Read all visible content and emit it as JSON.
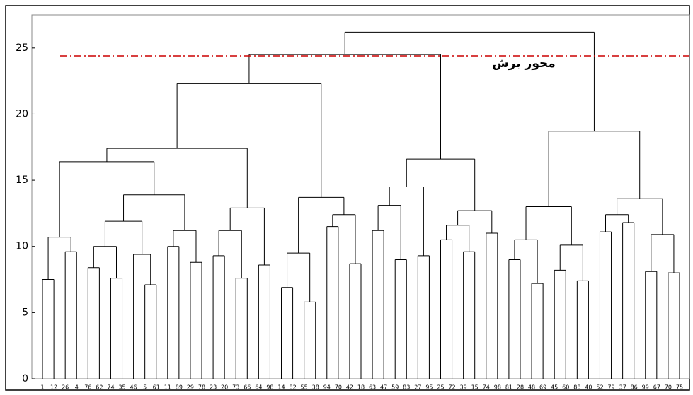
{
  "chart_data": {
    "type": "dendrogram",
    "ylim": [
      0,
      27.5
    ],
    "yticks": [
      0,
      5,
      10,
      15,
      20,
      25
    ],
    "line_color": "#000000",
    "cut_line": {
      "value": 24.4,
      "label": "محور برش",
      "color": "#cc0000"
    },
    "tree": {
      "height": 26.2,
      "children": [
        {
          "height": 24.5,
          "children": [
            {
              "height": 22.3,
              "children": [
                {
                  "height": 17.4,
                  "children": [
                    {
                      "height": 16.4,
                      "children": [
                        {
                          "height": 10.7,
                          "children": [
                            {
                              "height": 7.5,
                              "children": [
                                {
                                  "label": "1"
                                },
                                {
                                  "label": "12"
                                }
                              ]
                            },
                            {
                              "height": 9.6,
                              "children": [
                                {
                                  "label": "26"
                                },
                                {
                                  "label": "4"
                                }
                              ]
                            }
                          ]
                        },
                        {
                          "height": 13.9,
                          "children": [
                            {
                              "height": 11.9,
                              "children": [
                                {
                                  "height": 10.0,
                                  "children": [
                                    {
                                      "height": 8.4,
                                      "children": [
                                        {
                                          "label": "76"
                                        },
                                        {
                                          "label": "62"
                                        }
                                      ]
                                    },
                                    {
                                      "height": 7.6,
                                      "children": [
                                        {
                                          "label": "74"
                                        },
                                        {
                                          "label": "35"
                                        }
                                      ]
                                    }
                                  ]
                                },
                                {
                                  "height": 9.4,
                                  "children": [
                                    {
                                      "label": "46"
                                    },
                                    {
                                      "height": 7.1,
                                      "children": [
                                        {
                                          "label": "5"
                                        },
                                        {
                                          "label": "61"
                                        }
                                      ]
                                    }
                                  ]
                                }
                              ]
                            },
                            {
                              "height": 11.2,
                              "children": [
                                {
                                  "height": 10.0,
                                  "children": [
                                    {
                                      "label": "11"
                                    },
                                    {
                                      "label": "89"
                                    }
                                  ]
                                },
                                {
                                  "height": 8.8,
                                  "children": [
                                    {
                                      "label": "29"
                                    },
                                    {
                                      "label": "78"
                                    }
                                  ]
                                }
                              ]
                            }
                          ]
                        }
                      ]
                    },
                    {
                      "height": 12.9,
                      "children": [
                        {
                          "height": 11.2,
                          "children": [
                            {
                              "height": 9.3,
                              "children": [
                                {
                                  "label": "23"
                                },
                                {
                                  "label": "20"
                                }
                              ]
                            },
                            {
                              "height": 7.6,
                              "children": [
                                {
                                  "label": "73"
                                },
                                {
                                  "label": "66"
                                }
                              ]
                            }
                          ]
                        },
                        {
                          "height": 8.6,
                          "children": [
                            {
                              "label": "64"
                            },
                            {
                              "label": "98"
                            }
                          ]
                        }
                      ]
                    }
                  ]
                },
                {
                  "height": 13.7,
                  "children": [
                    {
                      "height": 9.5,
                      "children": [
                        {
                          "height": 6.9,
                          "children": [
                            {
                              "label": "14"
                            },
                            {
                              "label": "82"
                            }
                          ]
                        },
                        {
                          "height": 5.8,
                          "children": [
                            {
                              "label": "55"
                            },
                            {
                              "label": "38"
                            }
                          ]
                        }
                      ]
                    },
                    {
                      "height": 12.4,
                      "children": [
                        {
                          "height": 11.5,
                          "children": [
                            {
                              "label": "94"
                            },
                            {
                              "label": "70"
                            }
                          ]
                        },
                        {
                          "height": 8.7,
                          "children": [
                            {
                              "label": "42"
                            },
                            {
                              "label": "18"
                            }
                          ]
                        }
                      ]
                    }
                  ]
                }
              ]
            },
            {
              "height": 16.6,
              "children": [
                {
                  "height": 14.5,
                  "children": [
                    {
                      "height": 13.1,
                      "children": [
                        {
                          "height": 11.2,
                          "children": [
                            {
                              "label": "63"
                            },
                            {
                              "label": "47"
                            }
                          ]
                        },
                        {
                          "height": 9.0,
                          "children": [
                            {
                              "label": "59"
                            },
                            {
                              "label": "83"
                            }
                          ]
                        }
                      ]
                    },
                    {
                      "height": 9.3,
                      "children": [
                        {
                          "label": "27"
                        },
                        {
                          "label": "95"
                        }
                      ]
                    }
                  ]
                },
                {
                  "height": 12.7,
                  "children": [
                    {
                      "height": 11.6,
                      "children": [
                        {
                          "height": 10.5,
                          "children": [
                            {
                              "label": "25"
                            },
                            {
                              "label": "72"
                            }
                          ]
                        },
                        {
                          "height": 9.6,
                          "children": [
                            {
                              "label": "39"
                            },
                            {
                              "label": "15"
                            }
                          ]
                        }
                      ]
                    },
                    {
                      "height": 11.0,
                      "children": [
                        {
                          "label": "74"
                        },
                        {
                          "label": "98"
                        }
                      ]
                    }
                  ]
                }
              ]
            }
          ]
        },
        {
          "height": 18.7,
          "children": [
            {
              "height": 13.0,
              "children": [
                {
                  "height": 10.5,
                  "children": [
                    {
                      "height": 9.0,
                      "children": [
                        {
                          "label": "81"
                        },
                        {
                          "label": "28"
                        }
                      ]
                    },
                    {
                      "height": 7.2,
                      "children": [
                        {
                          "label": "48"
                        },
                        {
                          "label": "69"
                        }
                      ]
                    }
                  ]
                },
                {
                  "height": 10.1,
                  "children": [
                    {
                      "height": 8.2,
                      "children": [
                        {
                          "label": "45"
                        },
                        {
                          "label": "60"
                        }
                      ]
                    },
                    {
                      "height": 7.4,
                      "children": [
                        {
                          "label": "88"
                        },
                        {
                          "label": "40"
                        }
                      ]
                    }
                  ]
                }
              ]
            },
            {
              "height": 13.6,
              "children": [
                {
                  "height": 12.4,
                  "children": [
                    {
                      "height": 11.1,
                      "children": [
                        {
                          "label": "52"
                        },
                        {
                          "label": "79"
                        }
                      ]
                    },
                    {
                      "height": 11.8,
                      "children": [
                        {
                          "label": "37"
                        },
                        {
                          "label": "86"
                        }
                      ]
                    }
                  ]
                },
                {
                  "height": 10.9,
                  "children": [
                    {
                      "height": 8.1,
                      "children": [
                        {
                          "label": "99"
                        },
                        {
                          "label": "67"
                        }
                      ]
                    },
                    {
                      "height": 8.0,
                      "children": [
                        {
                          "label": "70"
                        },
                        {
                          "label": "75"
                        }
                      ]
                    }
                  ]
                }
              ]
            }
          ]
        }
      ]
    }
  }
}
